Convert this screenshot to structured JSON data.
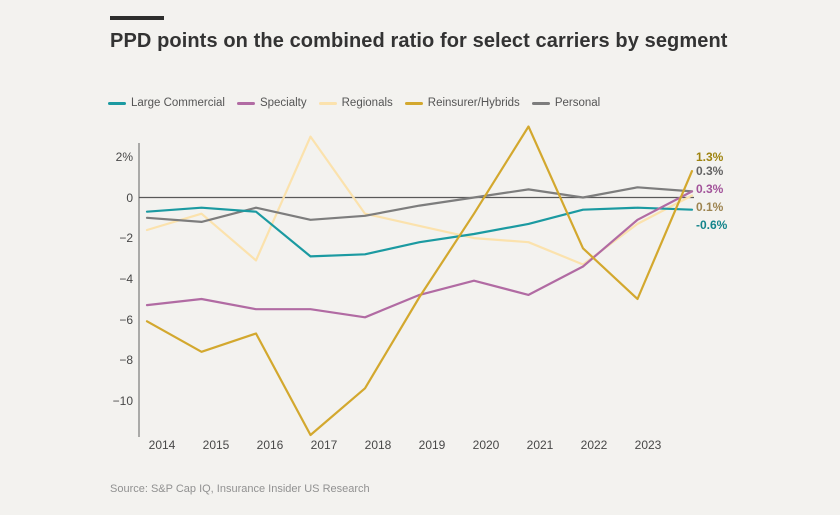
{
  "header": {
    "title": "PPD points on the combined ratio for select carriers by segment"
  },
  "legend": {
    "items": [
      {
        "label": "Large Commercial",
        "color": "#1b9aa1"
      },
      {
        "label": "Specialty",
        "color": "#b16ba3"
      },
      {
        "label": "Regionals",
        "color": "#fbe2ad"
      },
      {
        "label": "Reinsurer/Hybrids",
        "color": "#d3a82e"
      },
      {
        "label": "Personal",
        "color": "#7d7d7d"
      }
    ]
  },
  "chart_data": {
    "type": "line",
    "title": "PPD points on the combined ratio for select carriers by segment",
    "x_labels": [
      "2014",
      "2015",
      "2016",
      "2017",
      "2018",
      "2019",
      "2020",
      "2021",
      "2022",
      "2023",
      ""
    ],
    "yticks": [
      {
        "label": "2%",
        "value": 2
      },
      {
        "label": "0",
        "value": 0
      },
      {
        "label": "−2",
        "value": -2
      },
      {
        "label": "−4",
        "value": -4
      },
      {
        "label": "−6",
        "value": -6
      },
      {
        "label": "−8",
        "value": -8
      },
      {
        "label": "−10",
        "value": -10
      }
    ],
    "ylim": [
      -12.3,
      3.7
    ],
    "grid": "zero-line-only",
    "legend_position": "top",
    "series": [
      {
        "name": "Large Commercial",
        "color": "#1b9aa1",
        "values": [
          -0.7,
          -0.5,
          -0.7,
          -2.9,
          -2.8,
          -2.2,
          -1.8,
          -1.3,
          -0.6,
          -0.5,
          -0.6
        ],
        "end_label": "-0.6%",
        "end_label_color": "#12848b"
      },
      {
        "name": "Specialty",
        "color": "#b16ba3",
        "values": [
          -5.3,
          -5.0,
          -5.5,
          -5.5,
          -5.9,
          -4.8,
          -4.1,
          -4.8,
          -3.4,
          -1.1,
          0.3
        ],
        "end_label": "0.3%",
        "end_label_color": "#a2539a"
      },
      {
        "name": "Regionals",
        "color": "#fbe2ad",
        "values": [
          -1.6,
          -0.8,
          -3.1,
          3.0,
          -0.8,
          -1.4,
          -2.0,
          -2.2,
          -3.3,
          -1.3,
          0.1
        ],
        "end_label": "0.1%",
        "end_label_color": "#9d8450"
      },
      {
        "name": "Reinsurer/Hybrids",
        "color": "#d3a82e",
        "values": [
          -6.1,
          -7.6,
          -6.7,
          -11.7,
          -9.4,
          -4.9,
          -0.8,
          3.5,
          -2.5,
          -5.0,
          1.3
        ],
        "end_label": "1.3%",
        "end_label_color": "#9e8410"
      },
      {
        "name": "Personal",
        "color": "#7d7d7d",
        "values": [
          -1.0,
          -1.2,
          -0.5,
          -1.1,
          -0.9,
          -0.4,
          0.0,
          0.4,
          0.0,
          0.5,
          0.3
        ],
        "end_label": "0.3%",
        "end_label_color": "#636363"
      }
    ],
    "draw_order": [
      2,
      4,
      0,
      1,
      3
    ],
    "end_labels_stacked_top_to_bottom": [
      {
        "text": "1.3%",
        "color": "#9e8410"
      },
      {
        "text": "0.3%",
        "color": "#636363"
      },
      {
        "text": "0.3%",
        "color": "#a2539a"
      },
      {
        "text": "0.1%",
        "color": "#9d8450"
      },
      {
        "text": "-0.6%",
        "color": "#12848b"
      }
    ]
  },
  "footer": {
    "source": "Source: S&P Cap IQ, Insurance Insider US Research"
  }
}
